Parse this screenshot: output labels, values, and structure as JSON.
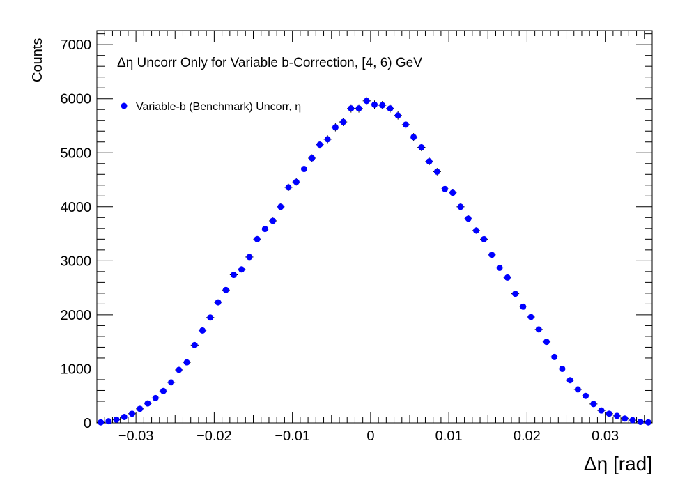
{
  "chart_data": {
    "type": "scatter",
    "title": "Δη Uncorr Only for Variable b-Correction, [4, 6) GeV",
    "xlabel": "Δη  [rad]",
    "ylabel": "Counts",
    "xlim": [
      -0.035,
      0.036
    ],
    "ylim": [
      0,
      7260
    ],
    "x_ticks": [
      -0.03,
      -0.02,
      -0.01,
      0,
      0.01,
      0.02,
      0.03
    ],
    "x_tick_labels": [
      "−0.03",
      "−0.02",
      "−0.01",
      "0",
      "0.01",
      "0.02",
      "0.03"
    ],
    "y_ticks": [
      0,
      1000,
      2000,
      3000,
      4000,
      5000,
      6000,
      7000
    ],
    "y_tick_labels": [
      "0",
      "1000",
      "2000",
      "3000",
      "4000",
      "5000",
      "6000",
      "7000"
    ],
    "grid": false,
    "legend_position": "top-left",
    "marker_color": "#0000ff",
    "series": [
      {
        "name": "Variable-b (Benchmark) Uncorr, η",
        "x": [
          -0.0345,
          -0.0335,
          -0.0325,
          -0.0315,
          -0.0305,
          -0.0295,
          -0.0285,
          -0.0275,
          -0.0265,
          -0.0255,
          -0.0245,
          -0.0235,
          -0.0225,
          -0.0215,
          -0.0205,
          -0.0195,
          -0.0185,
          -0.0175,
          -0.0165,
          -0.0155,
          -0.0145,
          -0.0135,
          -0.0125,
          -0.0115,
          -0.0105,
          -0.0095,
          -0.0085,
          -0.0075,
          -0.0065,
          -0.0055,
          -0.0045,
          -0.0035,
          -0.0025,
          -0.0015,
          -0.0005,
          0.0005,
          0.0015,
          0.0025,
          0.0035,
          0.0045,
          0.0055,
          0.0065,
          0.0075,
          0.0085,
          0.0095,
          0.0105,
          0.0115,
          0.0125,
          0.0135,
          0.0145,
          0.0155,
          0.0165,
          0.0175,
          0.0185,
          0.0195,
          0.0205,
          0.0215,
          0.0225,
          0.0235,
          0.0245,
          0.0255,
          0.0265,
          0.0275,
          0.0285,
          0.0295,
          0.0305,
          0.0315,
          0.0325,
          0.0335,
          0.0345,
          0.0355
        ],
        "y": [
          10,
          30,
          60,
          110,
          170,
          260,
          360,
          460,
          590,
          750,
          980,
          1120,
          1440,
          1710,
          1950,
          2230,
          2460,
          2740,
          2840,
          3070,
          3400,
          3590,
          3740,
          4000,
          4360,
          4460,
          4700,
          4900,
          5150,
          5250,
          5470,
          5570,
          5820,
          5820,
          5960,
          5890,
          5880,
          5820,
          5690,
          5520,
          5290,
          5100,
          4840,
          4650,
          4330,
          4260,
          4000,
          3780,
          3560,
          3400,
          3110,
          2870,
          2690,
          2390,
          2150,
          1960,
          1730,
          1500,
          1220,
          1000,
          790,
          620,
          500,
          350,
          230,
          170,
          130,
          80,
          50,
          20,
          10
        ]
      }
    ]
  }
}
